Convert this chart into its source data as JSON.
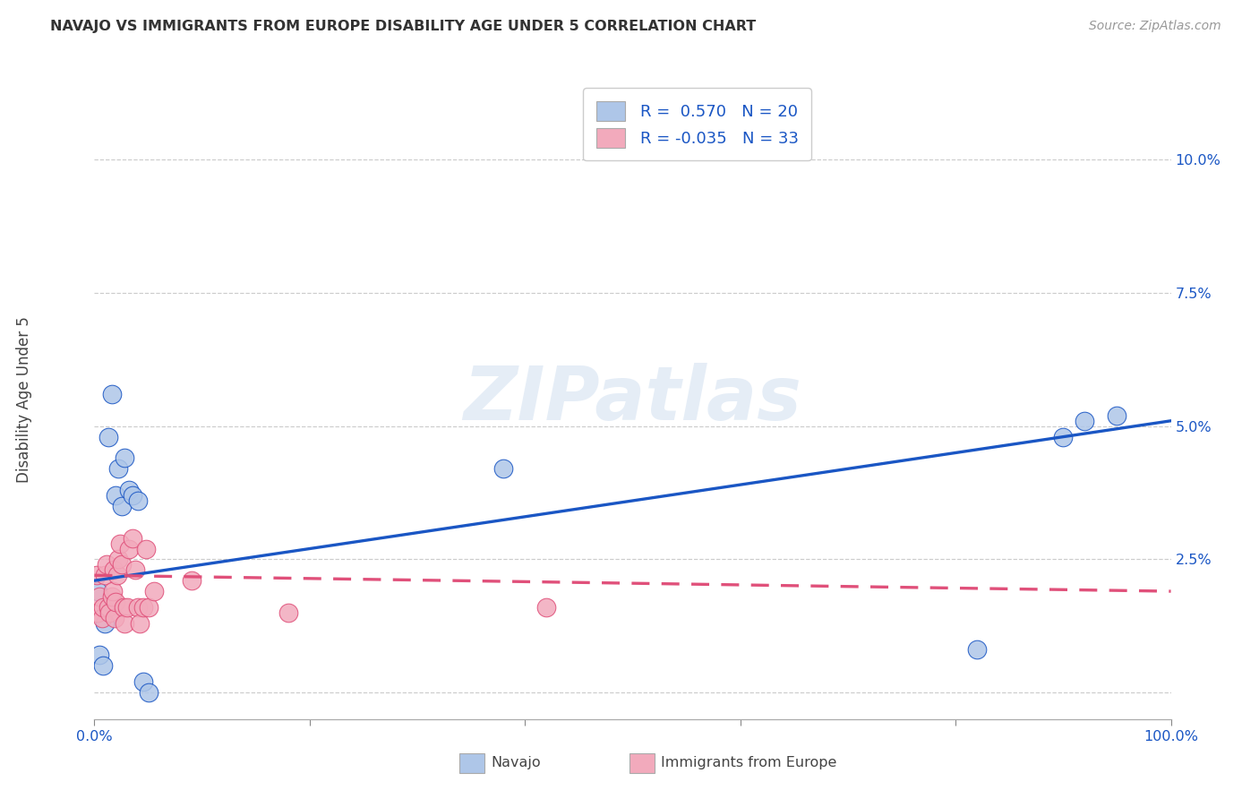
{
  "title": "NAVAJO VS IMMIGRANTS FROM EUROPE DISABILITY AGE UNDER 5 CORRELATION CHART",
  "source": "Source: ZipAtlas.com",
  "ylabel": "Disability Age Under 5",
  "legend_navajo": "Navajo",
  "legend_immigrants": "Immigrants from Europe",
  "xlim": [
    0.0,
    1.0
  ],
  "ylim": [
    -0.005,
    0.115
  ],
  "xtick_positions": [
    0.0,
    0.2,
    0.4,
    0.6,
    0.8,
    1.0
  ],
  "xtick_labels_shown": {
    "0.0": "0.0%",
    "1.0": "100.0%"
  },
  "yticks": [
    0.0,
    0.025,
    0.05,
    0.075,
    0.1
  ],
  "yticklabels": [
    "",
    "2.5%",
    "5.0%",
    "7.5%",
    "10.0%"
  ],
  "bg_color": "#ffffff",
  "grid_color": "#cccccc",
  "navajo_color": "#aec6e8",
  "immigrants_color": "#f2aabc",
  "navajo_line_color": "#1a56c4",
  "immigrants_line_color": "#e0507a",
  "watermark": "ZIPatlas",
  "navajo_x": [
    0.003,
    0.005,
    0.008,
    0.01,
    0.013,
    0.016,
    0.02,
    0.022,
    0.025,
    0.028,
    0.032,
    0.035,
    0.04,
    0.045,
    0.05,
    0.38,
    0.82,
    0.9,
    0.92,
    0.95
  ],
  "navajo_y": [
    0.019,
    0.007,
    0.005,
    0.013,
    0.048,
    0.056,
    0.037,
    0.042,
    0.035,
    0.044,
    0.038,
    0.037,
    0.036,
    0.002,
    0.0,
    0.042,
    0.008,
    0.048,
    0.051,
    0.052
  ],
  "immigrants_x": [
    0.002,
    0.003,
    0.005,
    0.007,
    0.008,
    0.01,
    0.011,
    0.013,
    0.014,
    0.016,
    0.017,
    0.018,
    0.019,
    0.02,
    0.021,
    0.022,
    0.024,
    0.025,
    0.027,
    0.028,
    0.03,
    0.032,
    0.035,
    0.038,
    0.04,
    0.042,
    0.045,
    0.048,
    0.05,
    0.055,
    0.09,
    0.18,
    0.42
  ],
  "immigrants_y": [
    0.022,
    0.015,
    0.018,
    0.014,
    0.016,
    0.022,
    0.024,
    0.016,
    0.015,
    0.018,
    0.019,
    0.023,
    0.014,
    0.017,
    0.022,
    0.025,
    0.028,
    0.024,
    0.016,
    0.013,
    0.016,
    0.027,
    0.029,
    0.023,
    0.016,
    0.013,
    0.016,
    0.027,
    0.016,
    0.019,
    0.021,
    0.015,
    0.016
  ],
  "navajo_trend": [
    0.021,
    0.051
  ],
  "immigrants_trend": [
    0.022,
    0.019
  ],
  "marker_size": 220
}
